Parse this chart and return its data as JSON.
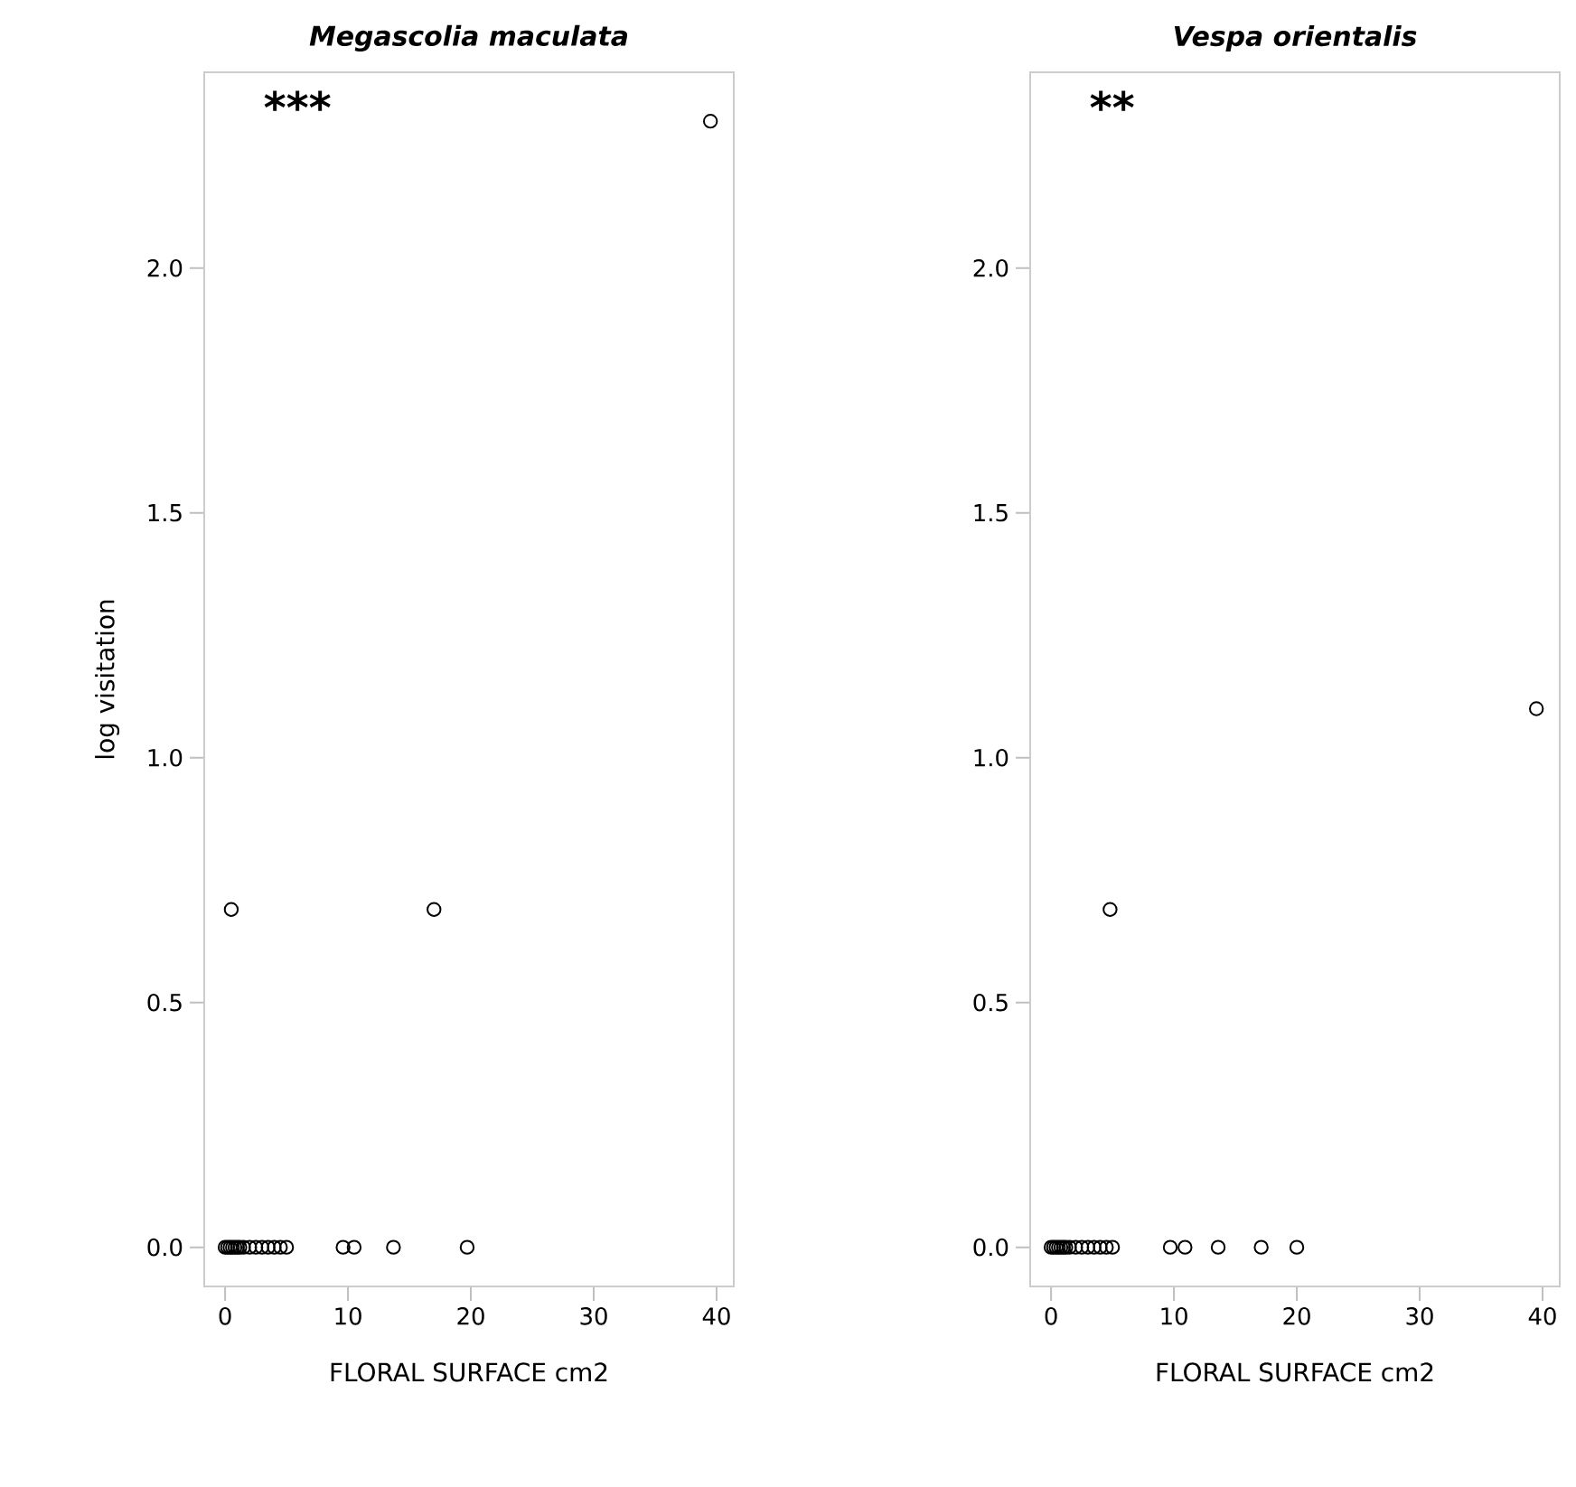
{
  "chart_data": [
    {
      "type": "scatter",
      "title": "Megascolia maculata",
      "xlabel": "FLORAL SURFACE cm2",
      "ylabel": "log visitation",
      "annotations": [
        "***"
      ],
      "marker": "circle",
      "grid": false,
      "x": [
        0,
        0.2,
        0.4,
        0.6,
        0.8,
        1,
        1.2,
        1.5,
        2,
        2.5,
        3,
        3.5,
        4,
        4.5,
        5,
        9.6,
        10.5,
        13.7,
        19.7,
        0.5,
        17,
        39.5
      ],
      "values": [
        0,
        0,
        0,
        0,
        0,
        0,
        0,
        0,
        0,
        0,
        0,
        0,
        0,
        0,
        0,
        0,
        0,
        0,
        0,
        0.69,
        0.69,
        2.3
      ],
      "xlim": [
        -1.7,
        41.4
      ],
      "ylim": [
        -0.08,
        2.4
      ],
      "xticks": [
        0,
        10,
        20,
        30,
        40
      ],
      "yticks": [
        {
          "value": 0,
          "label": "0.0"
        },
        {
          "value": 0.5,
          "label": "0.5"
        },
        {
          "value": 1,
          "label": "1.0"
        },
        {
          "value": 1.5,
          "label": "1.5"
        },
        {
          "value": 2,
          "label": "2.0"
        }
      ]
    },
    {
      "type": "scatter",
      "title": "Vespa orientalis",
      "xlabel": "FLORAL SURFACE cm2",
      "annotations": [
        "**"
      ],
      "marker": "circle",
      "grid": false,
      "x": [
        0,
        0.2,
        0.4,
        0.6,
        0.8,
        1,
        1.2,
        1.5,
        2,
        2.5,
        3,
        3.5,
        4,
        4.5,
        5,
        9.7,
        10.9,
        13.6,
        17.1,
        20,
        4.8,
        39.5
      ],
      "values": [
        0,
        0,
        0,
        0,
        0,
        0,
        0,
        0,
        0,
        0,
        0,
        0,
        0,
        0,
        0,
        0,
        0,
        0,
        0,
        0,
        0.69,
        1.1
      ],
      "xlim": [
        -1.7,
        41.4
      ],
      "ylim": [
        -0.08,
        2.4
      ],
      "xticks": [
        0,
        10,
        20,
        30,
        40
      ],
      "yticks": [
        {
          "value": 0,
          "label": "0.0"
        },
        {
          "value": 0.5,
          "label": "0.5"
        },
        {
          "value": 1,
          "label": "1.0"
        },
        {
          "value": 1.5,
          "label": "1.5"
        },
        {
          "value": 2,
          "label": "2.0"
        }
      ]
    }
  ]
}
